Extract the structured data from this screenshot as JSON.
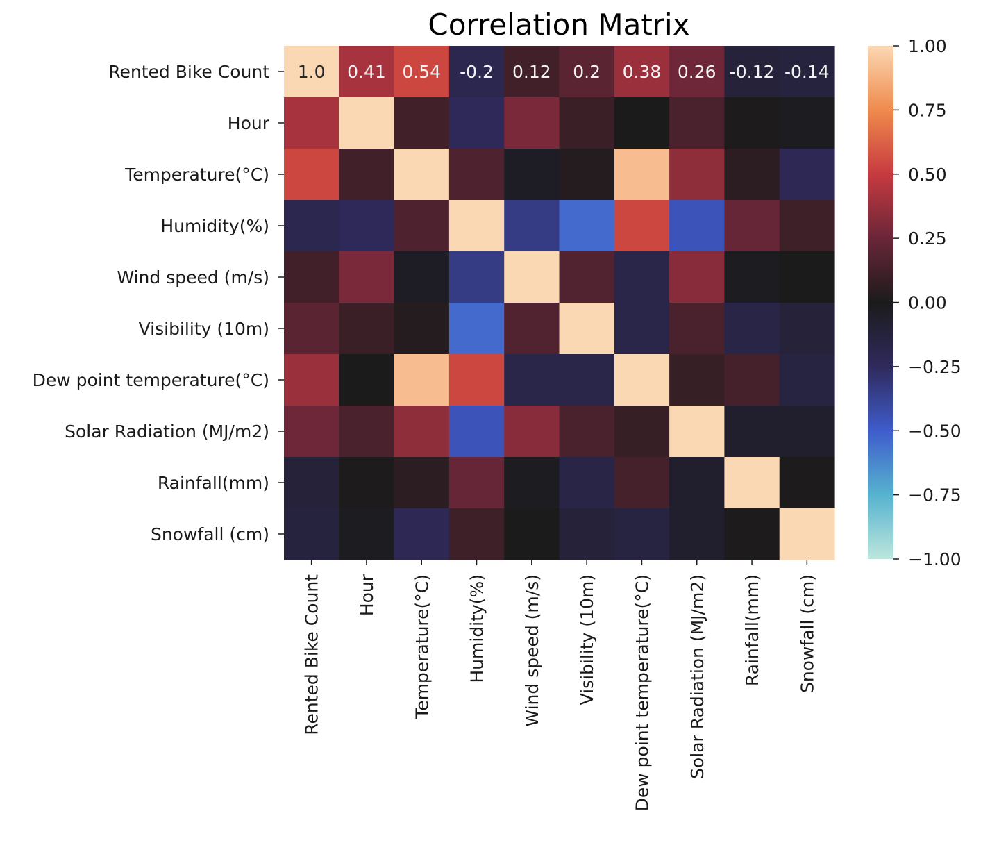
{
  "chart_data": {
    "type": "heatmap",
    "title": "Correlation Matrix",
    "variables": [
      "Rented Bike Count",
      "Hour",
      "Temperature(°C)",
      "Humidity(%)",
      "Wind speed (m/s)",
      "Visibility (10m)",
      "Dew point temperature(°C)",
      "Solar Radiation (MJ/m2)",
      "Rainfall(mm)",
      "Snowfall (cm)"
    ],
    "values": [
      [
        1.0,
        0.41,
        0.54,
        -0.2,
        0.12,
        0.2,
        0.38,
        0.26,
        -0.12,
        -0.14
      ],
      [
        0.41,
        1.0,
        0.12,
        -0.24,
        0.29,
        0.1,
        0.0,
        0.15,
        0.01,
        -0.02
      ],
      [
        0.54,
        0.12,
        1.0,
        0.16,
        -0.04,
        0.03,
        0.91,
        0.35,
        0.05,
        -0.22
      ],
      [
        -0.2,
        -0.24,
        0.16,
        1.0,
        -0.34,
        -0.54,
        0.54,
        -0.46,
        0.24,
        0.11
      ],
      [
        0.12,
        0.29,
        -0.04,
        -0.34,
        1.0,
        0.17,
        -0.18,
        0.33,
        -0.02,
        0.0
      ],
      [
        0.2,
        0.1,
        0.03,
        -0.54,
        0.17,
        1.0,
        -0.18,
        0.15,
        -0.17,
        -0.12
      ],
      [
        0.38,
        0.0,
        0.91,
        0.54,
        -0.18,
        -0.18,
        1.0,
        0.09,
        0.13,
        -0.15
      ],
      [
        0.26,
        0.15,
        0.35,
        -0.46,
        0.33,
        0.15,
        0.09,
        1.0,
        -0.07,
        -0.07
      ],
      [
        -0.12,
        0.01,
        0.05,
        0.24,
        -0.02,
        -0.17,
        0.13,
        -0.07,
        1.0,
        0.01
      ],
      [
        -0.14,
        -0.02,
        -0.22,
        0.11,
        0.0,
        -0.12,
        -0.15,
        -0.07,
        0.01,
        1.0
      ]
    ],
    "annotated_row": 0,
    "annotations": [
      "1.0",
      "0.41",
      "0.54",
      "-0.2",
      "0.12",
      "0.2",
      "0.38",
      "0.26",
      "-0.12",
      "-0.14"
    ],
    "colorbar": {
      "range": [
        -1.0,
        1.0
      ],
      "ticks": [
        1.0,
        0.75,
        0.5,
        0.25,
        0.0,
        -0.25,
        -0.5,
        -0.75,
        -1.0
      ],
      "tick_labels": [
        "1.00",
        "0.75",
        "0.50",
        "0.25",
        "0.00",
        "−0.25",
        "−0.50",
        "−0.75",
        "−1.00"
      ],
      "colormap": "icefire",
      "color_stops": [
        {
          "v": -1.0,
          "c": "#bde6dd"
        },
        {
          "v": -0.75,
          "c": "#55b3cf"
        },
        {
          "v": -0.5,
          "c": "#3f5ccc"
        },
        {
          "v": -0.25,
          "c": "#2f2a5c"
        },
        {
          "v": 0.0,
          "c": "#1b1b1b"
        },
        {
          "v": 0.25,
          "c": "#6a2639"
        },
        {
          "v": 0.5,
          "c": "#c73a3f"
        },
        {
          "v": 0.75,
          "c": "#ef8a4c"
        },
        {
          "v": 1.0,
          "c": "#fbd8b4"
        }
      ]
    }
  }
}
